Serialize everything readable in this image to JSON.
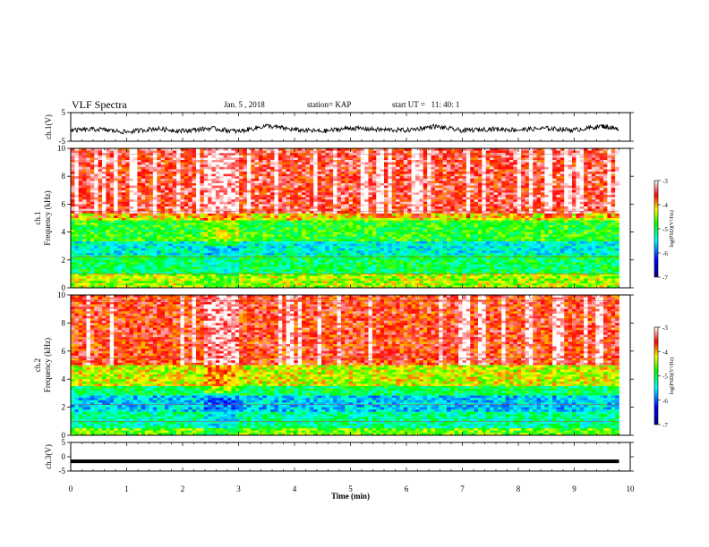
{
  "header": {
    "title": "VLF Spectra",
    "date": "Jan. 5 , 2018",
    "station": "station= KAP",
    "start_time": "start UT =   11: 40: 1"
  },
  "chart_data": [
    {
      "type": "line",
      "name": "ch1-waveform",
      "ylabel": "ch.1(V)",
      "xlim": [
        0,
        10
      ],
      "ylim": [
        -5,
        5
      ],
      "yticks": [
        "5",
        "-5"
      ],
      "x": [
        0,
        0.5,
        1,
        1.5,
        2,
        2.5,
        3,
        3.5,
        4,
        4.5,
        5,
        5.5,
        6,
        6.5,
        7,
        7.5,
        8,
        8.5,
        9,
        9.5,
        9.8
      ],
      "y": [
        -1.2,
        -0.8,
        -1.8,
        -0.6,
        -1.4,
        -0.5,
        -1.6,
        0.4,
        -1.0,
        -1.5,
        -0.4,
        -0.9,
        -1.2,
        0.2,
        -1.3,
        -0.7,
        -1.0,
        -0.5,
        -1.1,
        0.3,
        -0.8
      ]
    },
    {
      "type": "heatmap",
      "name": "ch1-spectrogram",
      "ylabel": "ch.1\nFrequency (kHz)",
      "xlim": [
        0,
        10
      ],
      "ylim": [
        0,
        10
      ],
      "yticks": [
        "0",
        "2",
        "4",
        "6",
        "8",
        "10"
      ],
      "bands": [
        {
          "from_khz": 5.3,
          "to_khz": 10,
          "level": -3.5
        },
        {
          "from_khz": 4.8,
          "to_khz": 5.3,
          "level": -4.2
        },
        {
          "from_khz": 3.3,
          "to_khz": 4.8,
          "level": -4.8
        },
        {
          "from_khz": 2.4,
          "to_khz": 3.3,
          "level": -5.4
        },
        {
          "from_khz": 1.0,
          "to_khz": 2.4,
          "level": -5.0
        },
        {
          "from_khz": 0,
          "to_khz": 1.0,
          "level": -4.4
        }
      ],
      "disturbance_minutes": [
        2.35,
        3.0
      ],
      "colorbar": {
        "label": "log(PSD)(V²/Hz)",
        "ticks": [
          "-3",
          "-4",
          "-5",
          "-6",
          "-7"
        ],
        "range": [
          -7,
          -3
        ]
      }
    },
    {
      "type": "heatmap",
      "name": "ch2-spectrogram",
      "ylabel": "ch.2\nFrequency (kHz)",
      "xlim": [
        0,
        10
      ],
      "ylim": [
        0,
        10
      ],
      "yticks": [
        "0",
        "2",
        "4",
        "6",
        "8",
        "10"
      ],
      "bands": [
        {
          "from_khz": 5.0,
          "to_khz": 10,
          "level": -3.6
        },
        {
          "from_khz": 3.5,
          "to_khz": 5.0,
          "level": -4.3
        },
        {
          "from_khz": 2.8,
          "to_khz": 3.5,
          "level": -5.0
        },
        {
          "from_khz": 1.6,
          "to_khz": 2.8,
          "level": -5.6
        },
        {
          "from_khz": 0.5,
          "to_khz": 1.6,
          "level": -5.2
        },
        {
          "from_khz": 0,
          "to_khz": 0.5,
          "level": -4.6
        }
      ],
      "disturbance_minutes": [
        2.35,
        3.0
      ],
      "colorbar": {
        "label": "log(PSD)(V²/Hz)",
        "ticks": [
          "-3",
          "-4",
          "-5",
          "-6",
          "-7"
        ],
        "range": [
          -7,
          -3
        ]
      }
    },
    {
      "type": "line",
      "name": "ch3-waveform",
      "ylabel": "ch.3(V)",
      "xlim": [
        0,
        10
      ],
      "ylim": [
        -5,
        5
      ],
      "yticks": [
        "5",
        "0",
        "-5"
      ],
      "x": [
        0,
        9.8
      ],
      "y": [
        -1.6,
        -1.6
      ]
    }
  ],
  "xaxis": {
    "label": "Time (min)",
    "ticks": [
      "0",
      "1",
      "2",
      "3",
      "4",
      "5",
      "6",
      "7",
      "8",
      "9",
      "10"
    ]
  },
  "colors": {
    "axis": "#000000",
    "colormap": [
      "#ffffff",
      "#000080",
      "#0000ff",
      "#00ffff",
      "#00ff00",
      "#ffff00",
      "#ff0000",
      "#ffffff"
    ]
  }
}
